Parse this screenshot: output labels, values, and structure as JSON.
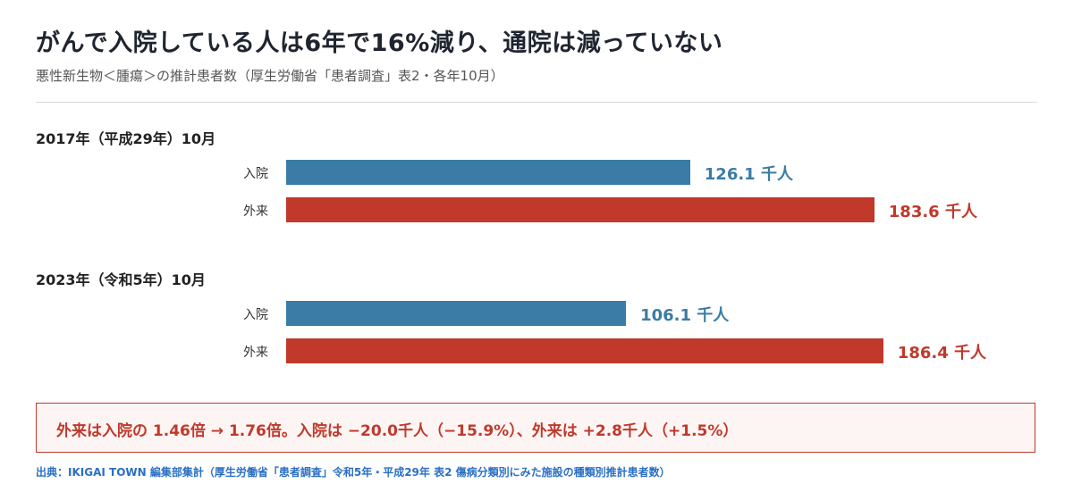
{
  "title": "がんで入院している人は6年で16%減り、通院は減っていない",
  "subtitle": "悪性新生物＜腫瘍＞の推計患者数（厚生労働省「患者調査」表2・各年10月）",
  "colors": {
    "inpatient": "#3a7ca5",
    "outpatient": "#c0392b"
  },
  "chart_data": {
    "type": "bar",
    "orientation": "horizontal",
    "unit": "千人",
    "xlim": [
      0,
      230
    ],
    "groups": [
      {
        "label": "2017年（平成29年）10月",
        "bars": [
          {
            "category": "入院",
            "value": 126.1,
            "display": "126.1 千人"
          },
          {
            "category": "外来",
            "value": 183.6,
            "display": "183.6 千人"
          }
        ]
      },
      {
        "label": "2023年（令和5年）10月",
        "bars": [
          {
            "category": "入院",
            "value": 106.1,
            "display": "106.1 千人"
          },
          {
            "category": "外来",
            "value": 186.4,
            "display": "186.4 千人"
          }
        ]
      }
    ]
  },
  "callout": "外来は入院の 1.46倍 → 1.76倍。入院は −20.0千人（−15.9%）、外来は +2.8千人（+1.5%）",
  "source": "出典：IKIGAI TOWN 編集部集計（厚生労働省「患者調査」令和5年・平成29年 表2 傷病分類別にみた施設の種類別推計患者数）"
}
